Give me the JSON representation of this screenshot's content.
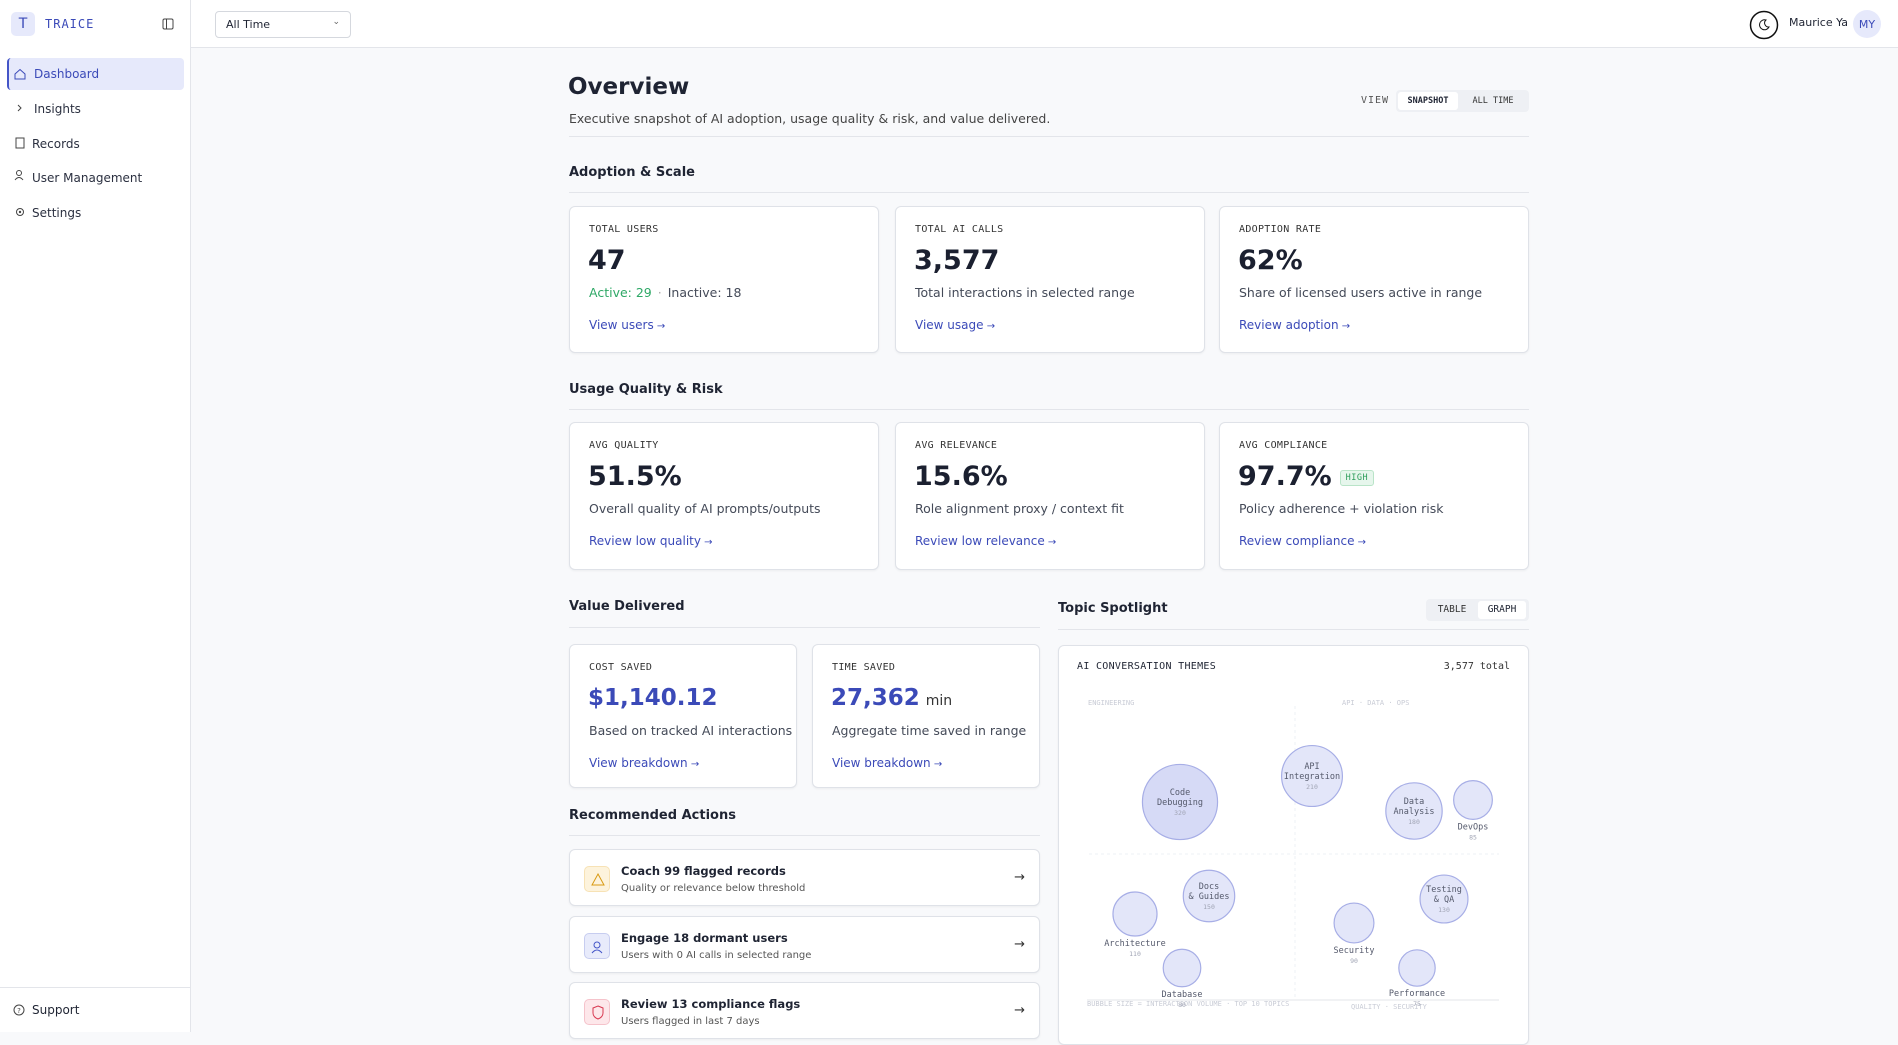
{
  "header": {
    "brand": "TRAICE",
    "logo": "T",
    "range": "All Time",
    "user": "Maurice Ya",
    "initials": "MY"
  },
  "nav": [
    "Dashboard",
    "Insights",
    "Records",
    "User Management",
    "Settings"
  ],
  "support": "Support",
  "overview": {
    "title": "Overview",
    "subtitle": "Executive snapshot of AI adoption, usage quality & risk, and value delivered.",
    "view_label": "VIEW",
    "view_options": [
      "SNAPSHOT",
      "ALL TIME"
    ]
  },
  "adoption": {
    "title": "Adoption & Scale",
    "cards": [
      {
        "label": "TOTAL USERS",
        "value": "47",
        "active": "Active: 29",
        "inactive": "Inactive: 18",
        "link": "View users"
      },
      {
        "label": "TOTAL AI CALLS",
        "value": "3,577",
        "detail": "Total interactions in selected range",
        "link": "View usage"
      },
      {
        "label": "ADOPTION RATE",
        "value": "62%",
        "detail": "Share of licensed users active in range",
        "link": "Review adoption"
      }
    ]
  },
  "quality": {
    "title": "Usage Quality & Risk",
    "cards": [
      {
        "label": "AVG QUALITY",
        "value": "51.5%",
        "detail": "Overall quality of AI prompts/outputs",
        "link": "Review low quality"
      },
      {
        "label": "AVG RELEVANCE",
        "value": "15.6%",
        "detail": "Role alignment proxy / context fit",
        "link": "Review low relevance"
      },
      {
        "label": "AVG COMPLIANCE",
        "value": "97.7%",
        "badge": "HIGH",
        "detail": "Policy adherence + violation risk",
        "link": "Review compliance"
      }
    ]
  },
  "value": {
    "title": "Value Delivered",
    "cards": [
      {
        "label": "COST SAVED",
        "value": "$1,140.12",
        "detail": "Based on tracked AI interactions",
        "link": "View breakdown"
      },
      {
        "label": "TIME SAVED",
        "value": "27,362",
        "unit": "min",
        "detail": "Aggregate time saved in range",
        "link": "View breakdown"
      }
    ]
  },
  "actions": {
    "title": "Recommended Actions",
    "items": [
      {
        "title": "Coach 99 flagged records",
        "detail": "Quality or relevance below threshold"
      },
      {
        "title": "Engage 18 dormant users",
        "detail": "Users with 0 AI calls in selected range"
      },
      {
        "title": "Review 13 compliance flags",
        "detail": "Users flagged in last 7 days"
      }
    ]
  },
  "topics": {
    "title": "Topic Spotlight",
    "toggle": [
      "TABLE",
      "GRAPH"
    ],
    "chart_title": "AI CONVERSATION THEMES",
    "total": "3,577 total",
    "zones": [
      "ENGINEERING",
      "API · DATA · OPS",
      "BUBBLE SIZE = INTERACTION VOLUME · TOP 10 TOPICS",
      "QUALITY · SECURITY"
    ],
    "bubbles": [
      {
        "lines": [
          "Code",
          "Debugging"
        ],
        "value": 320
      },
      {
        "lines": [
          "API",
          "Integration"
        ],
        "value": 210
      },
      {
        "lines": [
          "Data",
          "Analysis"
        ],
        "value": 180
      },
      {
        "lines": [
          "DevOps"
        ],
        "value": 85
      },
      {
        "lines": [
          "Docs",
          "& Guides"
        ],
        "value": 150
      },
      {
        "lines": [
          "Testing",
          "& QA"
        ],
        "value": 130
      },
      {
        "lines": [
          "Architecture"
        ],
        "value": 110
      },
      {
        "lines": [
          "Security"
        ],
        "value": 90
      },
      {
        "lines": [
          "Database"
        ],
        "value": 80
      },
      {
        "lines": [
          "Performance"
        ],
        "value": 75
      }
    ]
  }
}
